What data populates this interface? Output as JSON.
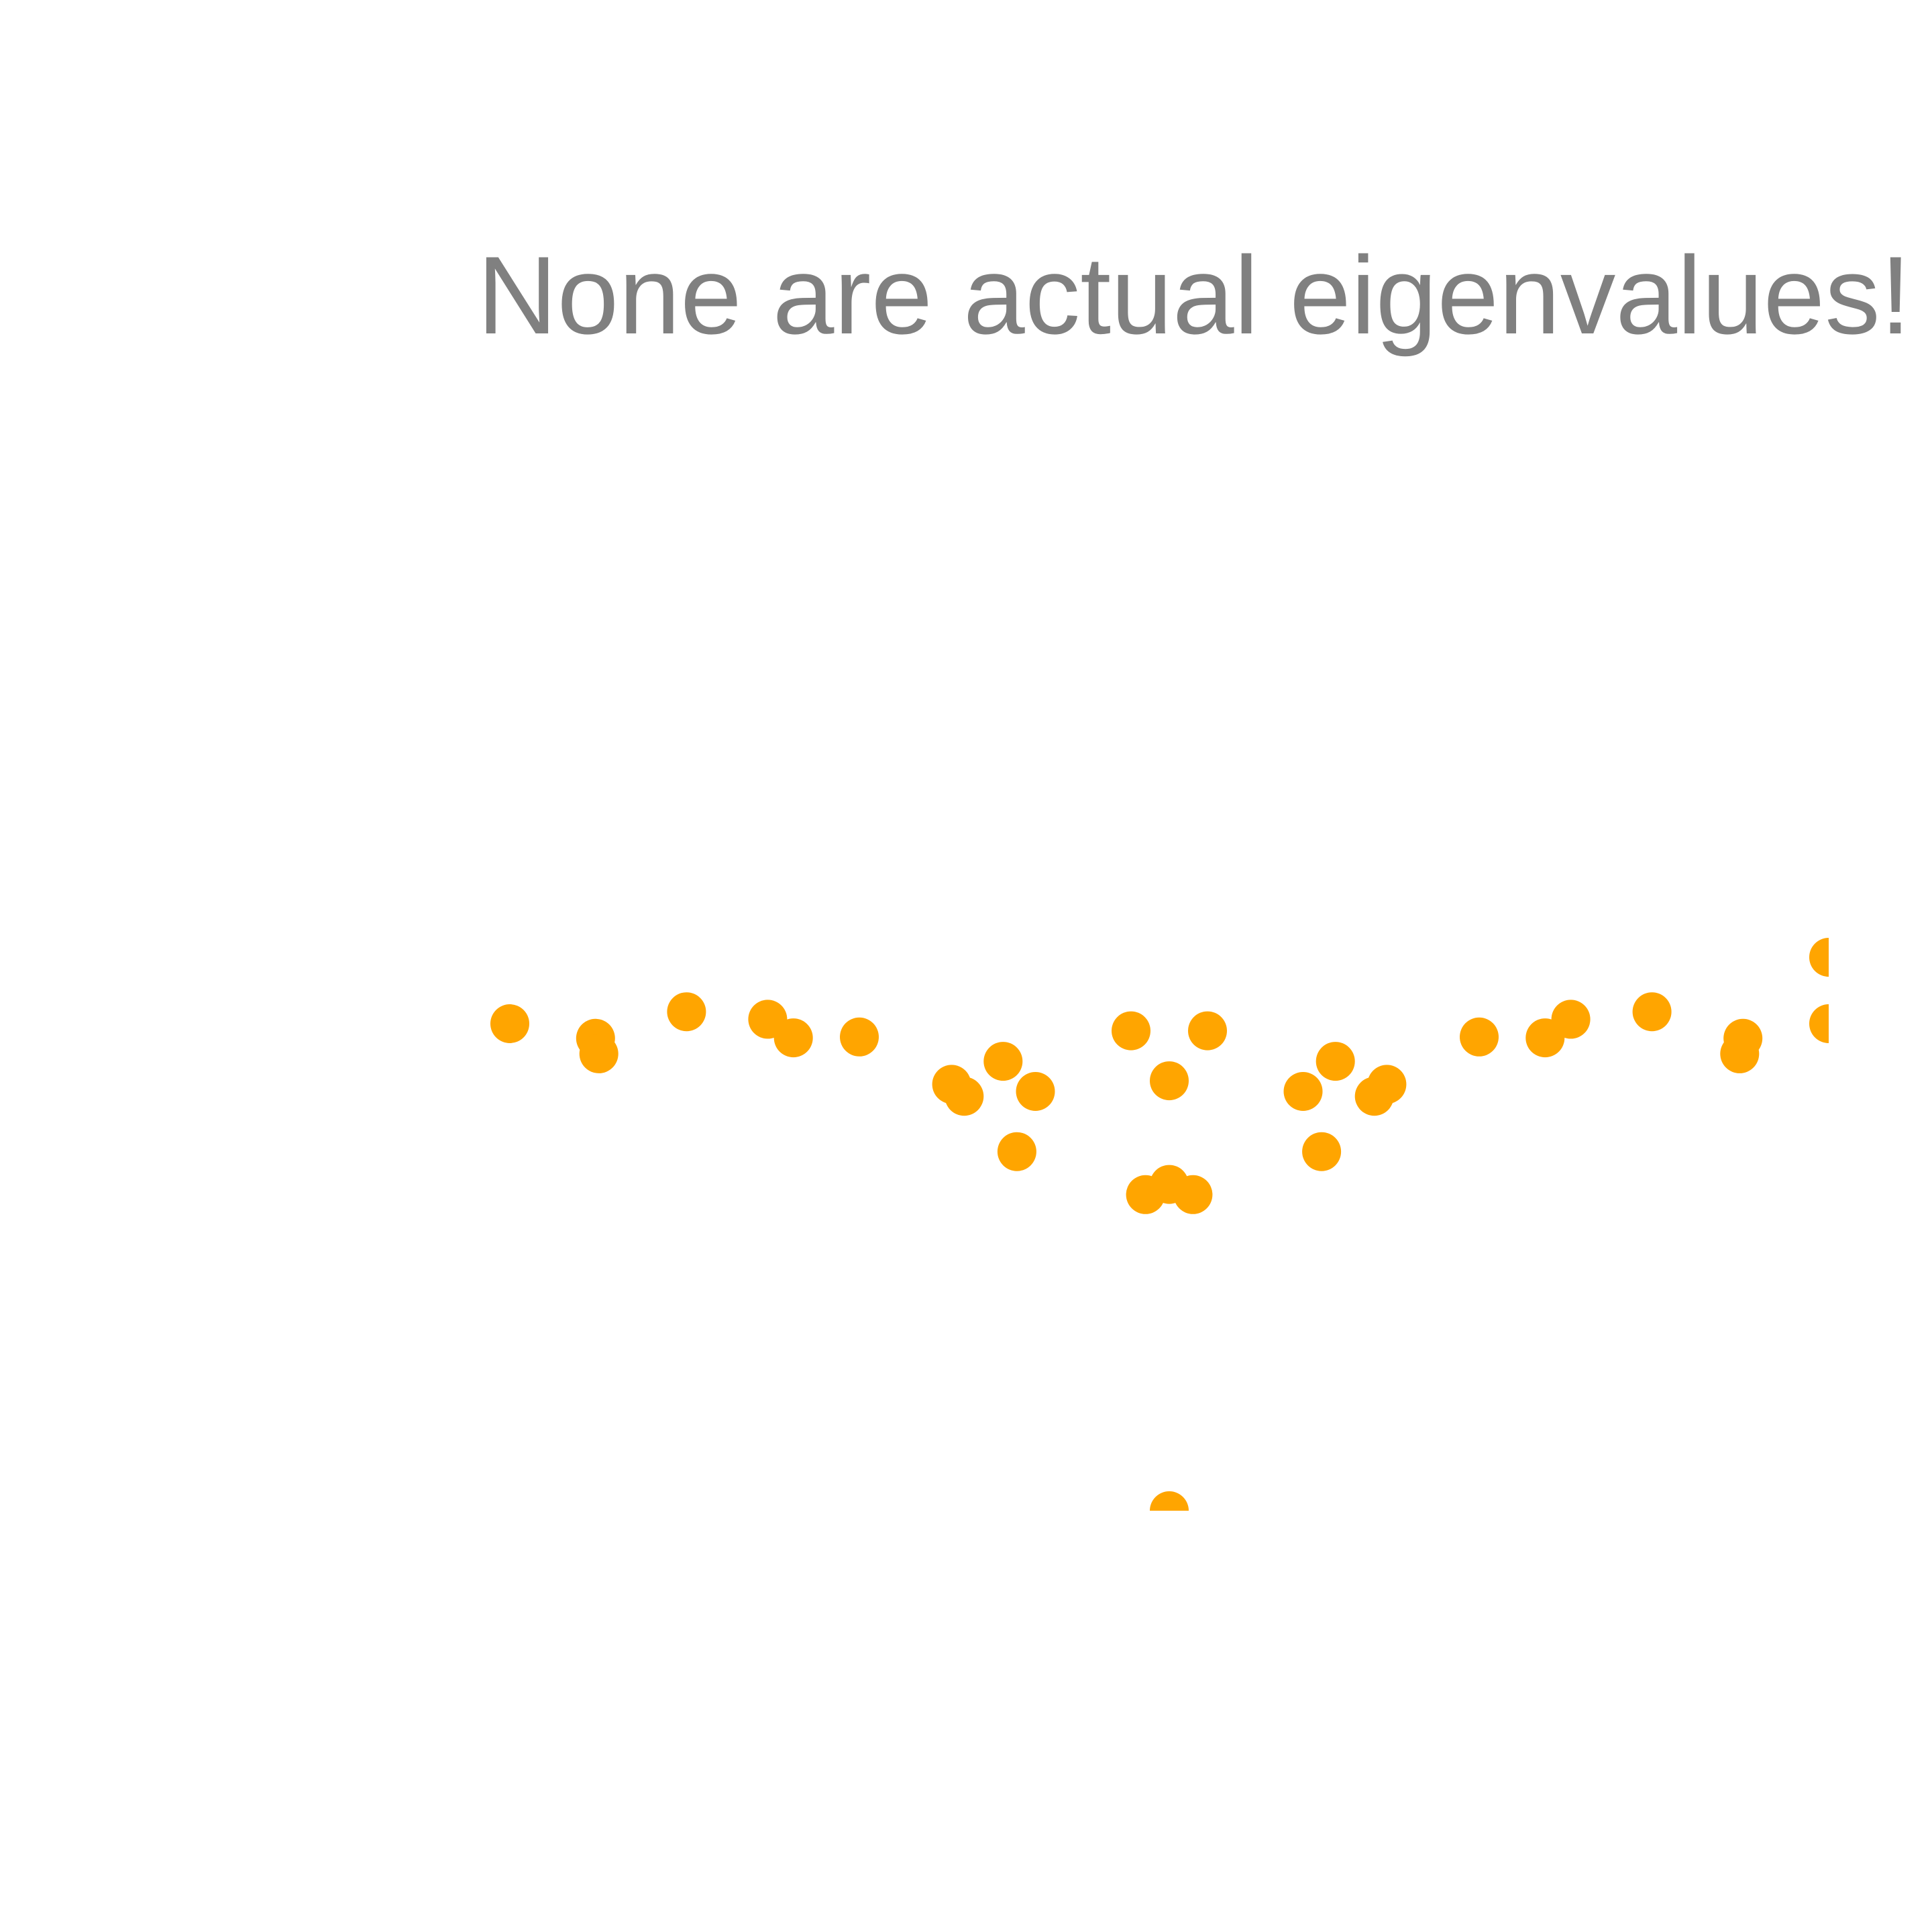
{
  "colors": {
    "background": "#ffffff",
    "point": "#ffa500",
    "title": "#808080"
  },
  "chart_data": {
    "type": "scatter",
    "title": "None are actual eigenvalues!",
    "xlabel": "",
    "ylabel": "",
    "grid": false,
    "legend": "none",
    "xlim": [
      -1.0,
      1.0
    ],
    "ylim": [
      -1.0,
      1.0
    ],
    "points": [
      {
        "x": -1.0,
        "y": 0.1
      },
      {
        "x": -0.87,
        "y": 0.067
      },
      {
        "x": -0.865,
        "y": 0.032
      },
      {
        "x": -0.732,
        "y": 0.127
      },
      {
        "x": -0.609,
        "y": 0.11
      },
      {
        "x": -0.57,
        "y": 0.068
      },
      {
        "x": -0.47,
        "y": 0.07
      },
      {
        "x": -0.33,
        "y": -0.037
      },
      {
        "x": -0.311,
        "y": -0.064
      },
      {
        "x": -0.252,
        "y": 0.015
      },
      {
        "x": -0.231,
        "y": -0.189
      },
      {
        "x": -0.203,
        "y": -0.053
      },
      {
        "x": -0.058,
        "y": 0.084
      },
      {
        "x": -0.036,
        "y": -0.286
      },
      {
        "x": 0.0,
        "y": -0.263
      },
      {
        "x": 0.0,
        "y": -0.029
      },
      {
        "x": 0.036,
        "y": -0.286
      },
      {
        "x": 0.058,
        "y": 0.084
      },
      {
        "x": 0.0,
        "y": -1.0
      },
      {
        "x": 0.203,
        "y": -0.053
      },
      {
        "x": 0.231,
        "y": -0.189
      },
      {
        "x": 0.252,
        "y": 0.015
      },
      {
        "x": 0.311,
        "y": -0.064
      },
      {
        "x": 0.33,
        "y": -0.037
      },
      {
        "x": 0.47,
        "y": 0.07
      },
      {
        "x": 0.57,
        "y": 0.068
      },
      {
        "x": 0.609,
        "y": 0.11
      },
      {
        "x": 0.732,
        "y": 0.127
      },
      {
        "x": 0.865,
        "y": 0.032
      },
      {
        "x": 0.87,
        "y": 0.067
      },
      {
        "x": 1.0,
        "y": 0.1
      },
      {
        "x": 1.0,
        "y": 0.25
      }
    ]
  }
}
